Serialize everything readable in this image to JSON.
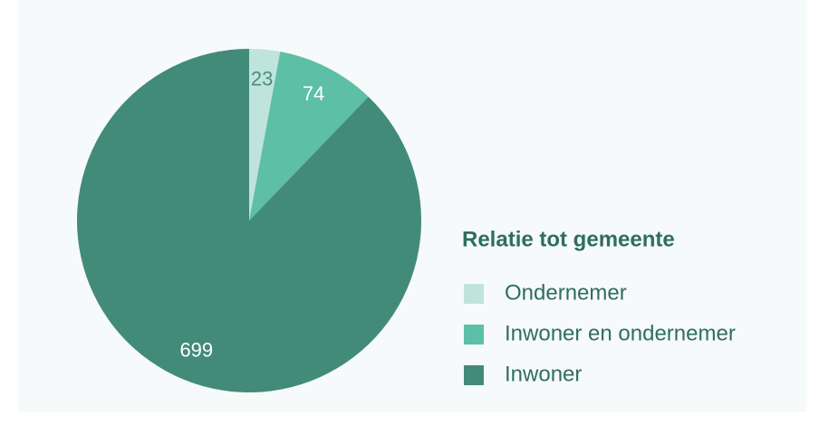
{
  "chart_data": {
    "type": "pie",
    "legend_title": "Relatie tot gemeente",
    "categories": [
      "Ondernemer",
      "Inwoner en ondernemer",
      "Inwoner"
    ],
    "values": [
      23,
      74,
      699
    ],
    "colors": [
      "#bfe4db",
      "#5cbfa6",
      "#438b79"
    ],
    "legend": "right"
  }
}
